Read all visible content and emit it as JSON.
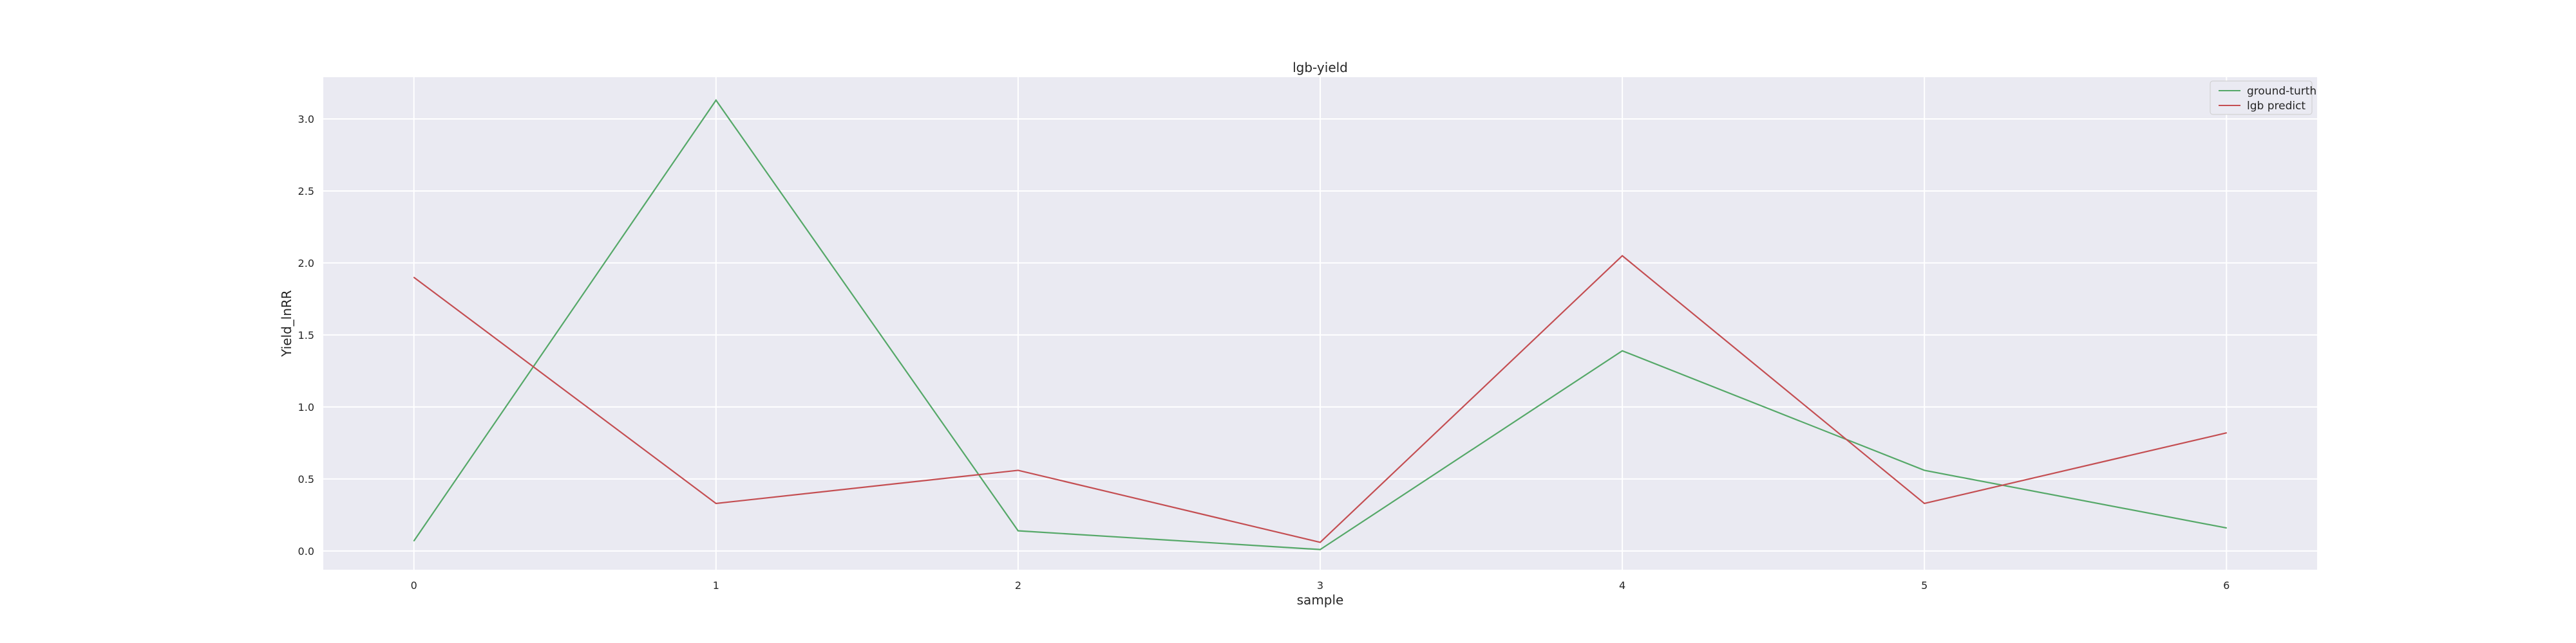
{
  "chart_data": {
    "type": "line",
    "title": "lgb-yield",
    "xlabel": "sample",
    "ylabel": "Yield_lnRR",
    "x": [
      0,
      1,
      2,
      3,
      4,
      5,
      6
    ],
    "xticks": [
      "0",
      "1",
      "2",
      "3",
      "4",
      "5",
      "6"
    ],
    "yticks": [
      "0.0",
      "0.5",
      "1.0",
      "1.5",
      "2.0",
      "2.5",
      "3.0"
    ],
    "xlim": [
      -0.3,
      6.3
    ],
    "ylim": [
      -0.13,
      3.29
    ],
    "grid": true,
    "legend_position": "top-right",
    "background_color": "#eaeaf2",
    "series": [
      {
        "name": "ground-turth",
        "color": "#55a868",
        "values": [
          0.07,
          3.13,
          0.14,
          0.01,
          1.39,
          0.56,
          0.16
        ]
      },
      {
        "name": "lgb predict",
        "color": "#c44e52",
        "values": [
          1.9,
          0.33,
          0.56,
          0.06,
          2.05,
          0.33,
          0.82
        ]
      }
    ]
  }
}
